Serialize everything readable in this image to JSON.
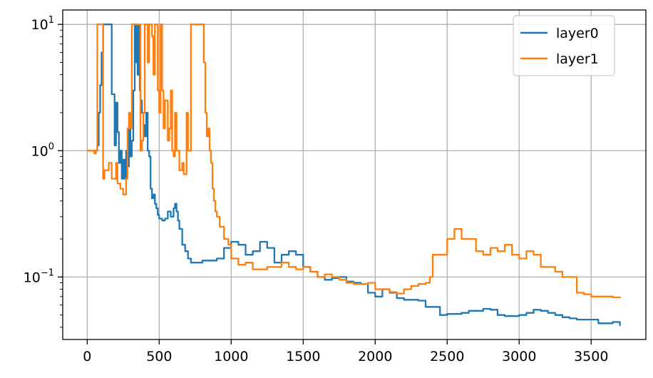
{
  "chart_data": {
    "type": "line",
    "title": "",
    "xlabel": "",
    "ylabel": "",
    "xlim": [
      -170,
      3880
    ],
    "ylim": [
      0.032,
      13
    ],
    "yscale": "log",
    "grid": true,
    "legend_position": "top-right",
    "x_ticks": [
      0,
      500,
      1000,
      1500,
      2000,
      2500,
      3000,
      3500
    ],
    "x_tick_labels": [
      "0",
      "500",
      "1000",
      "1500",
      "2000",
      "2500",
      "3000",
      "3500"
    ],
    "y_ticks": [
      {
        "value": 10,
        "base": "10",
        "exp": "1"
      },
      {
        "value": 1,
        "base": "10",
        "exp": "0"
      },
      {
        "value": 0.1,
        "base": "10",
        "exp": "−1"
      }
    ],
    "series": [
      {
        "name": "layer0",
        "color": "#1f77b4",
        "x": [
          0,
          60,
          70,
          80,
          90,
          100,
          110,
          120,
          130,
          150,
          170,
          190,
          200,
          210,
          220,
          230,
          240,
          250,
          260,
          270,
          280,
          290,
          300,
          310,
          320,
          330,
          340,
          345,
          350,
          360,
          365,
          370,
          380,
          390,
          400,
          410,
          420,
          430,
          440,
          450,
          460,
          470,
          480,
          490,
          500,
          520,
          540,
          560,
          580,
          600,
          610,
          620,
          630,
          640,
          660,
          680,
          700,
          720,
          750,
          800,
          850,
          900,
          950,
          1000,
          1050,
          1100,
          1150,
          1200,
          1250,
          1300,
          1350,
          1400,
          1450,
          1500,
          1550,
          1600,
          1650,
          1700,
          1750,
          1800,
          1850,
          1900,
          1950,
          2000,
          2050,
          2100,
          2150,
          2200,
          2250,
          2300,
          2350,
          2400,
          2450,
          2500,
          2550,
          2600,
          2650,
          2700,
          2750,
          2800,
          2850,
          2900,
          2950,
          3000,
          3050,
          3100,
          3150,
          3200,
          3250,
          3300,
          3350,
          3400,
          3450,
          3500,
          3550,
          3600,
          3650,
          3700
        ],
        "y": [
          1.0,
          1.0,
          1.1,
          2.0,
          3.3,
          6.0,
          10.0,
          10.0,
          10.0,
          10.0,
          2.8,
          1.1,
          2.4,
          1.4,
          0.8,
          1.0,
          0.6,
          0.85,
          0.6,
          1.0,
          0.75,
          1.5,
          0.9,
          1.2,
          3.0,
          10.0,
          5.0,
          10.0,
          4.0,
          10.0,
          3.0,
          2.5,
          2.0,
          1.6,
          1.3,
          2.0,
          1.0,
          0.9,
          0.5,
          0.42,
          0.45,
          0.38,
          0.35,
          0.31,
          0.29,
          0.28,
          0.29,
          0.33,
          0.3,
          0.35,
          0.38,
          0.33,
          0.28,
          0.24,
          0.18,
          0.16,
          0.14,
          0.13,
          0.13,
          0.135,
          0.135,
          0.14,
          0.17,
          0.19,
          0.18,
          0.15,
          0.16,
          0.19,
          0.17,
          0.13,
          0.15,
          0.16,
          0.15,
          0.12,
          0.11,
          0.1,
          0.095,
          0.098,
          0.1,
          0.092,
          0.09,
          0.088,
          0.075,
          0.07,
          0.08,
          0.075,
          0.068,
          0.066,
          0.066,
          0.065,
          0.058,
          0.058,
          0.05,
          0.051,
          0.051,
          0.052,
          0.054,
          0.054,
          0.056,
          0.055,
          0.05,
          0.049,
          0.049,
          0.05,
          0.052,
          0.055,
          0.054,
          0.052,
          0.05,
          0.048,
          0.047,
          0.046,
          0.046,
          0.046,
          0.043,
          0.043,
          0.044,
          0.041
        ]
      },
      {
        "name": "layer1",
        "color": "#ff7f0e",
        "x": [
          0,
          40,
          50,
          60,
          70,
          80,
          90,
          100,
          110,
          120,
          130,
          150,
          170,
          190,
          200,
          210,
          230,
          250,
          270,
          280,
          290,
          300,
          310,
          330,
          350,
          370,
          380,
          390,
          400,
          410,
          420,
          430,
          440,
          450,
          460,
          470,
          480,
          490,
          500,
          510,
          520,
          530,
          540,
          560,
          570,
          580,
          590,
          600,
          610,
          620,
          640,
          660,
          670,
          690,
          700,
          720,
          740,
          760,
          780,
          800,
          810,
          820,
          830,
          840,
          850,
          860,
          870,
          880,
          890,
          900,
          920,
          950,
          980,
          1000,
          1050,
          1100,
          1150,
          1200,
          1250,
          1300,
          1350,
          1400,
          1450,
          1500,
          1550,
          1600,
          1650,
          1700,
          1750,
          1800,
          1850,
          1900,
          1950,
          2000,
          2050,
          2100,
          2150,
          2200,
          2250,
          2300,
          2350,
          2380,
          2400,
          2450,
          2500,
          2550,
          2600,
          2650,
          2700,
          2750,
          2800,
          2850,
          2900,
          2950,
          3000,
          3050,
          3100,
          3150,
          3200,
          3250,
          3300,
          3350,
          3400,
          3450,
          3500,
          3550,
          3600,
          3650,
          3700
        ],
        "y": [
          1.0,
          1.0,
          0.95,
          1.0,
          10.0,
          10.0,
          10.0,
          10.0,
          0.6,
          0.7,
          0.7,
          0.8,
          0.6,
          0.6,
          0.8,
          0.55,
          0.5,
          0.45,
          0.6,
          1.5,
          2.0,
          1.5,
          10.0,
          10.0,
          10.0,
          1.0,
          1.2,
          2.0,
          10.0,
          10.0,
          5.0,
          10.0,
          10.0,
          8.0,
          4.0,
          10.0,
          10.0,
          3.0,
          2.0,
          10.0,
          3.0,
          1.5,
          2.5,
          1.2,
          1.5,
          3.0,
          1.0,
          0.9,
          2.0,
          1.0,
          0.7,
          0.8,
          0.65,
          2.0,
          1.0,
          10.0,
          10.0,
          10.0,
          10.0,
          10.0,
          5.0,
          2.0,
          1.3,
          1.5,
          1.0,
          0.8,
          0.5,
          0.4,
          0.33,
          0.3,
          0.25,
          0.2,
          0.18,
          0.14,
          0.125,
          0.13,
          0.115,
          0.115,
          0.12,
          0.12,
          0.13,
          0.12,
          0.115,
          0.12,
          0.11,
          0.1,
          0.105,
          0.1,
          0.095,
          0.09,
          0.088,
          0.088,
          0.09,
          0.08,
          0.08,
          0.076,
          0.074,
          0.08,
          0.085,
          0.088,
          0.09,
          0.1,
          0.15,
          0.15,
          0.2,
          0.24,
          0.2,
          0.2,
          0.16,
          0.15,
          0.17,
          0.16,
          0.18,
          0.15,
          0.14,
          0.16,
          0.15,
          0.12,
          0.12,
          0.11,
          0.1,
          0.1,
          0.075,
          0.073,
          0.07,
          0.07,
          0.07,
          0.069,
          0.068
        ]
      }
    ]
  }
}
